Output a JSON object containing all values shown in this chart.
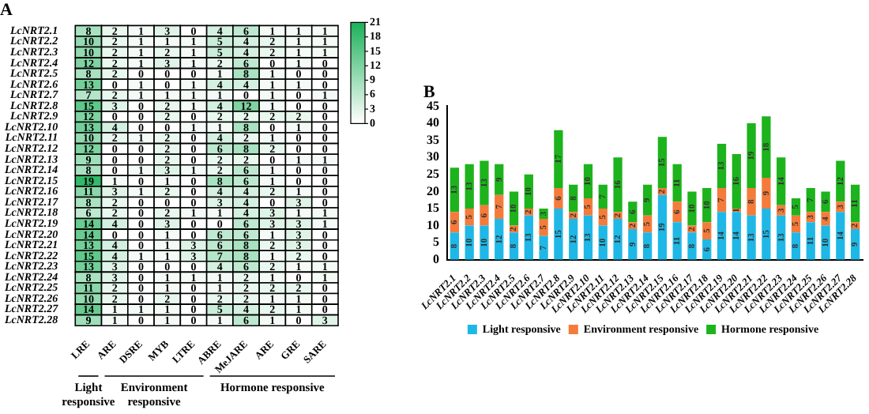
{
  "chart_data": [
    {
      "type": "heatmap",
      "title": "A",
      "data_labels": true,
      "categories": [
        "LRE",
        "ARE",
        "DSRE",
        "MYB",
        "LTRE",
        "ABRE",
        "MeJARE",
        "ARE",
        "GRE",
        "SARE"
      ],
      "y_categories": [
        "LcNRT2.1",
        "LcNRT2.2",
        "LcNRT2.3",
        "LcNRT2.4",
        "LcNRT2.5",
        "LcNRT2.6",
        "LcNRT2.7",
        "LcNRT2.8",
        "LcNRT2.9",
        "LcNRT2.10",
        "LcNRT2.11",
        "LcNRT2.12",
        "LcNRT2.13",
        "LcNRT2.14",
        "LcNRT2.15",
        "LcNRT2.16",
        "LcNRT2.17",
        "LcNRT2.18",
        "LcNRT2.19",
        "LcNRT2.20",
        "LcNRT2.21",
        "LcNRT2.22",
        "LcNRT2.23",
        "LcNRT2.24",
        "LcNRT2.25",
        "LcNRT2.26",
        "LcNRT2.27",
        "LcNRT2.28"
      ],
      "cells": [
        [
          8,
          2,
          1,
          3,
          0,
          4,
          6,
          1,
          1,
          1
        ],
        [
          10,
          2,
          1,
          1,
          1,
          5,
          4,
          2,
          1,
          1
        ],
        [
          10,
          2,
          1,
          2,
          1,
          5,
          4,
          2,
          1,
          1
        ],
        [
          12,
          2,
          1,
          3,
          1,
          2,
          6,
          0,
          1,
          0
        ],
        [
          8,
          2,
          0,
          0,
          0,
          1,
          8,
          1,
          0,
          0
        ],
        [
          13,
          0,
          1,
          0,
          1,
          4,
          4,
          1,
          1,
          0
        ],
        [
          7,
          2,
          1,
          1,
          1,
          1,
          0,
          1,
          0,
          1
        ],
        [
          15,
          3,
          0,
          2,
          1,
          4,
          12,
          1,
          0,
          0
        ],
        [
          12,
          0,
          0,
          2,
          0,
          2,
          2,
          2,
          2,
          0
        ],
        [
          13,
          4,
          0,
          0,
          1,
          1,
          8,
          0,
          1,
          0
        ],
        [
          10,
          2,
          1,
          2,
          0,
          4,
          2,
          1,
          0,
          0
        ],
        [
          12,
          0,
          0,
          2,
          0,
          6,
          8,
          2,
          0,
          0
        ],
        [
          9,
          0,
          0,
          2,
          0,
          2,
          2,
          0,
          1,
          1
        ],
        [
          8,
          0,
          1,
          3,
          1,
          2,
          6,
          1,
          0,
          0
        ],
        [
          19,
          1,
          0,
          1,
          0,
          8,
          6,
          1,
          0,
          0
        ],
        [
          11,
          3,
          1,
          2,
          0,
          4,
          4,
          2,
          1,
          0
        ],
        [
          8,
          2,
          0,
          0,
          0,
          3,
          4,
          0,
          3,
          0
        ],
        [
          6,
          2,
          0,
          2,
          1,
          1,
          4,
          3,
          1,
          1
        ],
        [
          14,
          4,
          0,
          3,
          0,
          0,
          6,
          3,
          3,
          1
        ],
        [
          14,
          0,
          0,
          1,
          0,
          6,
          6,
          1,
          3,
          0
        ],
        [
          13,
          4,
          0,
          1,
          3,
          6,
          8,
          2,
          3,
          0
        ],
        [
          15,
          4,
          1,
          1,
          3,
          7,
          8,
          1,
          2,
          0
        ],
        [
          13,
          3,
          0,
          0,
          0,
          4,
          6,
          2,
          1,
          1
        ],
        [
          8,
          3,
          0,
          1,
          1,
          1,
          2,
          1,
          0,
          1
        ],
        [
          11,
          2,
          0,
          1,
          0,
          1,
          2,
          2,
          2,
          0
        ],
        [
          10,
          2,
          0,
          2,
          0,
          2,
          2,
          1,
          1,
          0
        ],
        [
          14,
          1,
          1,
          1,
          0,
          5,
          4,
          2,
          1,
          0
        ],
        [
          9,
          1,
          0,
          1,
          0,
          1,
          6,
          1,
          0,
          3
        ]
      ],
      "clim": [
        0,
        21
      ],
      "cticks": [
        0,
        3,
        6,
        9,
        12,
        15,
        18,
        21
      ],
      "annotations": [
        "Light responsive",
        "Environment responsive",
        "Hormone responsive"
      ]
    },
    {
      "type": "bar",
      "title": "B",
      "stacked": true,
      "data_labels": true,
      "legend": "bottom",
      "categories": [
        "LcNRT2.1",
        "LcNRT2.2",
        "LcNRT2.3",
        "LcNRT2.4",
        "LcNRT2.5",
        "LcNRT2.6",
        "LcNRT2.7",
        "LcNRT2.8",
        "LcNRT2.9",
        "LcNRT2.10",
        "LcNRT2.11",
        "LcNRT2.12",
        "LcNRT2.13",
        "LcNRT2.14",
        "LcNRT2.15",
        "LcNRT2.16",
        "LcNRT2.17",
        "LcNRT2.18",
        "LcNRT2.19",
        "LcNRT2.20",
        "LcNRT2.21",
        "LcNRT2.22",
        "LcNRT2.23",
        "LcNRT2.24",
        "LcNRT2.25",
        "LcNRT2.26",
        "LcNRT2.27",
        "LcNRT2.28"
      ],
      "series": [
        {
          "name": "Light responsive",
          "color": "#1fb8e6",
          "values": [
            8,
            10,
            10,
            12,
            8,
            13,
            7,
            15,
            12,
            13,
            10,
            12,
            9,
            8,
            19,
            11,
            8,
            6,
            14,
            14,
            13,
            15,
            13,
            8,
            11,
            10,
            14,
            9
          ]
        },
        {
          "name": "Environment responsive",
          "color": "#f47b3a",
          "values": [
            6,
            5,
            6,
            7,
            2,
            2,
            5,
            6,
            2,
            5,
            5,
            2,
            2,
            5,
            2,
            6,
            2,
            5,
            7,
            1,
            8,
            9,
            3,
            5,
            3,
            4,
            3,
            2
          ]
        },
        {
          "name": "Hormone responsive",
          "color": "#1db31d",
          "values": [
            13,
            13,
            13,
            9,
            10,
            10,
            3,
            17,
            8,
            10,
            7,
            16,
            6,
            9,
            15,
            11,
            10,
            10,
            13,
            16,
            19,
            18,
            14,
            5,
            7,
            6,
            12,
            11
          ]
        }
      ],
      "ylim": [
        0,
        45
      ],
      "yticks": [
        0,
        5,
        10,
        15,
        20,
        25,
        30,
        35,
        40,
        45
      ]
    }
  ]
}
